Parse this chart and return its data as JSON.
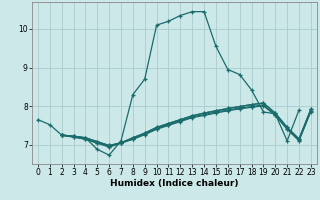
{
  "bg_color": "#cce8e8",
  "line_color": "#1a6b6b",
  "grid_color": "#aacccc",
  "xlabel": "Humidex (Indice chaleur)",
  "xlim": [
    -0.5,
    23.5
  ],
  "ylim": [
    6.5,
    10.7
  ],
  "yticks": [
    7,
    8,
    9,
    10
  ],
  "xticks": [
    0,
    1,
    2,
    3,
    4,
    5,
    6,
    7,
    8,
    9,
    10,
    11,
    12,
    13,
    14,
    15,
    16,
    17,
    18,
    19,
    20,
    21,
    22,
    23
  ],
  "line1_x": [
    0,
    1,
    2,
    3,
    4,
    5,
    6,
    7,
    8,
    9,
    10,
    11,
    12,
    13,
    14,
    15,
    16,
    17,
    18,
    19,
    20,
    21,
    22
  ],
  "line1_y": [
    7.65,
    7.52,
    7.25,
    7.22,
    7.18,
    6.88,
    6.73,
    7.1,
    8.3,
    8.7,
    10.1,
    10.2,
    10.35,
    10.45,
    10.45,
    9.55,
    8.95,
    8.82,
    8.42,
    7.85,
    7.8,
    7.1,
    7.9
  ],
  "line2_x": [
    2,
    3,
    4,
    5,
    6,
    7,
    8,
    9,
    10,
    11,
    12,
    13,
    14,
    15,
    16,
    17,
    18,
    19,
    20,
    21,
    22,
    23
  ],
  "line2_y": [
    7.25,
    7.22,
    7.18,
    7.08,
    6.98,
    7.05,
    7.18,
    7.3,
    7.45,
    7.55,
    7.65,
    7.75,
    7.82,
    7.88,
    7.94,
    7.99,
    8.04,
    8.08,
    7.82,
    7.45,
    7.15,
    7.92
  ],
  "line3_x": [
    2,
    3,
    4,
    5,
    6,
    7,
    8,
    9,
    10,
    11,
    12,
    13,
    14,
    15,
    16,
    17,
    18,
    19,
    20,
    21,
    22,
    23
  ],
  "line3_y": [
    7.25,
    7.22,
    7.18,
    7.08,
    6.98,
    7.05,
    7.18,
    7.3,
    7.45,
    7.55,
    7.65,
    7.75,
    7.82,
    7.88,
    7.94,
    7.99,
    8.04,
    8.08,
    7.82,
    7.45,
    7.15,
    7.92
  ],
  "line4_x": [
    2,
    3,
    4,
    5,
    6,
    7,
    8,
    9,
    10,
    11,
    12,
    13,
    14,
    15,
    16,
    17,
    18,
    19,
    20,
    21,
    22,
    23
  ],
  "line4_y": [
    7.25,
    7.2,
    7.15,
    7.05,
    6.95,
    7.05,
    7.15,
    7.28,
    7.42,
    7.52,
    7.62,
    7.72,
    7.78,
    7.85,
    7.9,
    7.95,
    7.99,
    8.03,
    7.78,
    7.42,
    7.12,
    7.88
  ],
  "line5_x": [
    2,
    3,
    4,
    5,
    6,
    7,
    8,
    9,
    10,
    11,
    12,
    13,
    14,
    15,
    16,
    17,
    18,
    19,
    20,
    21,
    22,
    23
  ],
  "line5_y": [
    7.24,
    7.2,
    7.14,
    7.04,
    6.94,
    7.04,
    7.14,
    7.26,
    7.4,
    7.5,
    7.6,
    7.7,
    7.76,
    7.82,
    7.88,
    7.93,
    7.97,
    8.01,
    7.76,
    7.4,
    7.1,
    7.86
  ]
}
